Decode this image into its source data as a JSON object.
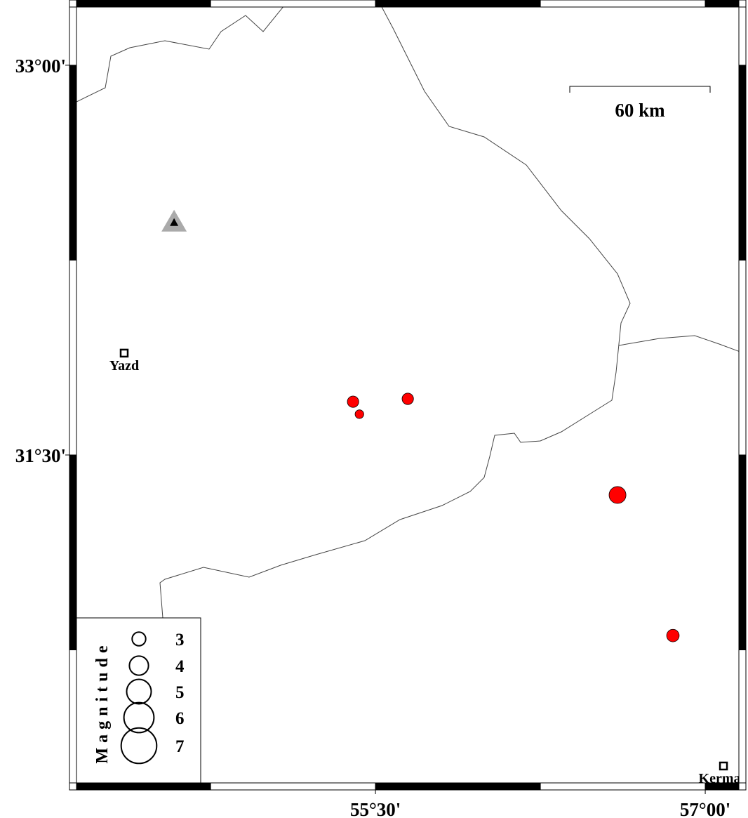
{
  "map": {
    "lonlim": [
      54.14,
      57.153
    ],
    "latlim": [
      30.238,
      33.224
    ],
    "lonticks": [
      {
        "value": 55.5,
        "label": "55°30'"
      },
      {
        "value": 57,
        "label": "57°00'"
      }
    ],
    "latticks": [
      {
        "value": 33,
        "label": "33°00'"
      },
      {
        "value": 31.5,
        "label": "31°30'"
      }
    ],
    "frame_interval": 0.75,
    "scale_bar": {
      "label": "60 km",
      "km": 60
    },
    "cities": [
      {
        "name": "Yazd",
        "lon": 54.357,
        "lat": 31.892
      },
      {
        "name": "Kerman",
        "lon": 57.083,
        "lat": 30.303
      }
    ],
    "station": {
      "lon": 54.584,
      "lat": 32.395,
      "color": "#aaaaaa"
    },
    "event_color": "#ff0000",
    "events": [
      {
        "lon": 55.398,
        "lat": 31.705,
        "mag": 2.6
      },
      {
        "lon": 55.427,
        "lat": 31.657,
        "mag": 2.1
      },
      {
        "lon": 55.647,
        "lat": 31.716,
        "mag": 2.6
      },
      {
        "lon": 56.601,
        "lat": 31.346,
        "mag": 3.6
      },
      {
        "lon": 56.853,
        "lat": 30.805,
        "mag": 2.8
      }
    ],
    "legend": {
      "title": "Magnitude",
      "magnitudes": [
        3,
        4,
        5,
        6,
        7
      ]
    }
  }
}
